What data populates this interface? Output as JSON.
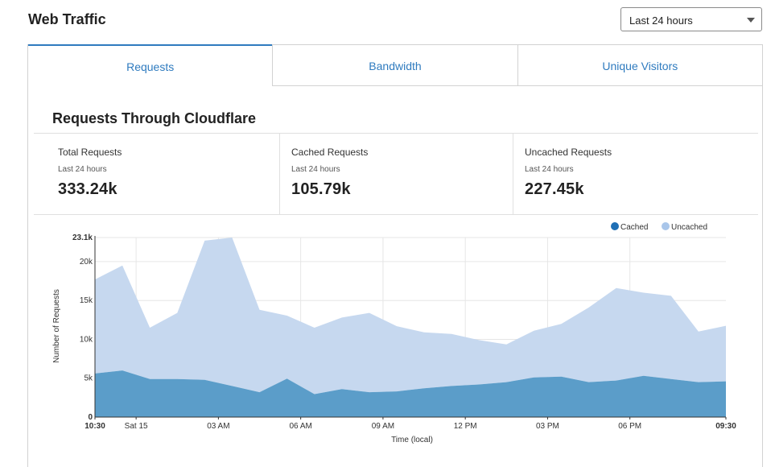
{
  "header": {
    "title": "Web Traffic"
  },
  "range_select": {
    "selected": "Last 24 hours"
  },
  "tabs": [
    {
      "label": "Requests",
      "active": true
    },
    {
      "label": "Bandwidth",
      "active": false
    },
    {
      "label": "Unique Visitors",
      "active": false
    }
  ],
  "section": {
    "title": "Requests Through Cloudflare"
  },
  "stats": [
    {
      "label": "Total Requests",
      "period": "Last 24 hours",
      "value": "333.24k"
    },
    {
      "label": "Cached Requests",
      "period": "Last 24 hours",
      "value": "105.79k"
    },
    {
      "label": "Uncached Requests",
      "period": "Last 24 hours",
      "value": "227.45k"
    }
  ],
  "colors": {
    "accent": "#2f7bbf",
    "cached": "#5b9dc9",
    "uncached": "#c6d8ef",
    "cached_legend": "#1f6fb5",
    "uncached_legend": "#a9c6ea"
  },
  "chart_data": {
    "type": "area",
    "stacked": true,
    "xlabel": "Time (local)",
    "ylabel": "Number of Requests",
    "x_ticks": [
      "10:30",
      "Sat 15",
      "03 AM",
      "06 AM",
      "09 AM",
      "12 PM",
      "03 PM",
      "06 PM",
      "09:30"
    ],
    "y_ticks": [
      "0",
      "5k",
      "10k",
      "15k",
      "20k",
      "23.1k"
    ],
    "ylim": [
      0,
      23100
    ],
    "grid": true,
    "legend_position": "top-right",
    "x": [
      "10:30",
      "11:30",
      "12:30",
      "13:30",
      "14:30",
      "15:30",
      "16:30",
      "17:30",
      "18:30",
      "19:30",
      "20:30",
      "21:30",
      "22:30",
      "23:30",
      "00:30",
      "01:30",
      "02:30",
      "03:30",
      "04:30",
      "05:30",
      "06:30",
      "07:30",
      "08:30",
      "09:30"
    ],
    "series": [
      {
        "name": "Cached",
        "values": [
          5600,
          6000,
          4900,
          4900,
          4800,
          4000,
          3200,
          4950,
          2950,
          3600,
          3200,
          3300,
          3700,
          4000,
          4200,
          4500,
          5100,
          5200,
          4500,
          4700,
          5300,
          4900,
          4500,
          4600
        ]
      },
      {
        "name": "Uncached",
        "values": [
          12100,
          13500,
          6600,
          8500,
          17900,
          19100,
          10600,
          8100,
          8550,
          9200,
          10200,
          8400,
          7200,
          6700,
          5700,
          4850,
          6000,
          6800,
          9600,
          11900,
          10700,
          10700,
          6500,
          7150
        ]
      }
    ]
  }
}
